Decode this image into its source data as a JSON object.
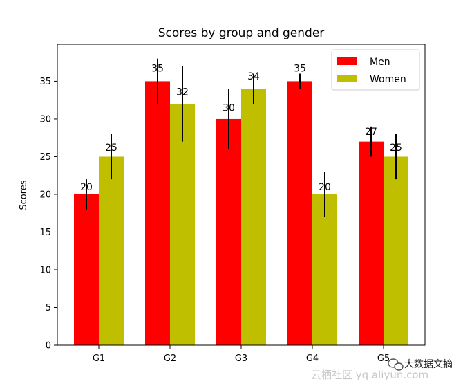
{
  "chart_data": {
    "type": "bar",
    "title": "Scores by group and gender",
    "xlabel": "",
    "ylabel": "Scores",
    "categories": [
      "G1",
      "G2",
      "G3",
      "G4",
      "G5"
    ],
    "ylim": [
      0,
      39.9
    ],
    "yticks": [
      0,
      5,
      10,
      15,
      20,
      25,
      30,
      35
    ],
    "series": [
      {
        "name": "Men",
        "color": "#ff0000",
        "values": [
          20,
          35,
          30,
          35,
          27
        ],
        "errors": [
          2,
          3,
          4,
          1,
          2
        ]
      },
      {
        "name": "Women",
        "color": "#bfbf00",
        "values": [
          25,
          32,
          34,
          20,
          25
        ],
        "errors": [
          3,
          5,
          2,
          3,
          3
        ]
      }
    ],
    "legend": "top-right",
    "grid": false
  },
  "watermark": {
    "text": "云栖社区 yq.aliyun.com",
    "badge": "大数据文摘"
  }
}
